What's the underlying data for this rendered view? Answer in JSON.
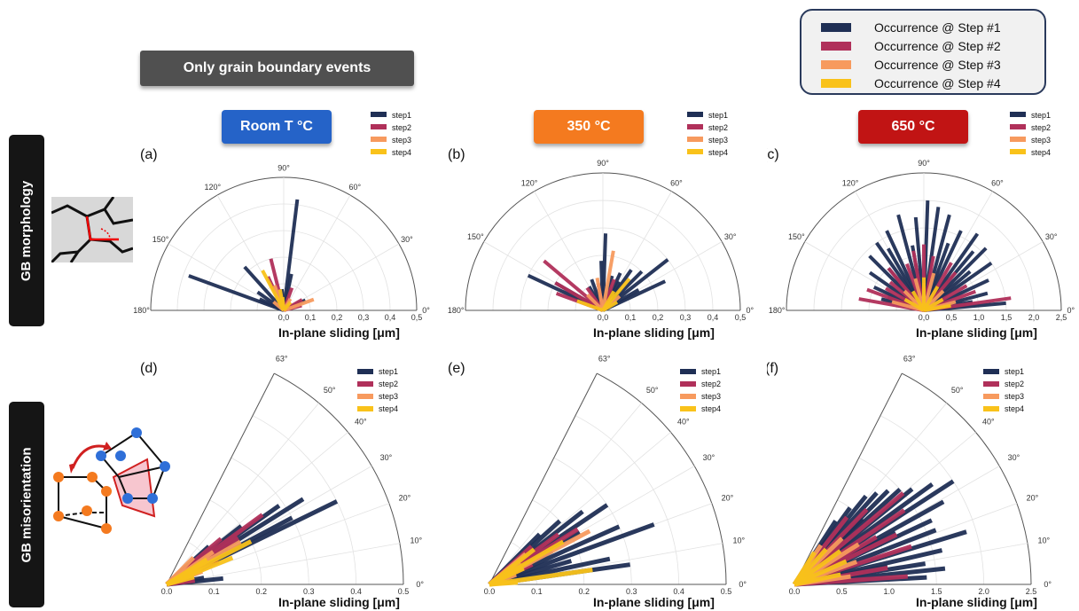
{
  "banner": "Only grain boundary events",
  "legend": [
    {
      "label": "Occurrence @ Step #1",
      "color": "#1f2f55"
    },
    {
      "label": "Occurrence @ Step #2",
      "color": "#b0305a"
    },
    {
      "label": "Occurrence @ Step #3",
      "color": "#f79a5e"
    },
    {
      "label": "Occurrence @ Step #4",
      "color": "#f9c21a"
    }
  ],
  "rows": [
    "GB morphology",
    "GB misorientation"
  ],
  "temperatures": [
    {
      "label": "Room T °C",
      "color": "#2563c8"
    },
    {
      "label": "350 °C",
      "color": "#f47a1f"
    },
    {
      "label": "650 °C",
      "color": "#c11414"
    }
  ],
  "step_legend": [
    "step1",
    "step2",
    "step3",
    "step4"
  ],
  "step_colors": [
    "#1f2f55",
    "#b0305a",
    "#f79a5e",
    "#f9c21a"
  ],
  "chart_data": [
    {
      "id": "a",
      "panel_label": "(a)",
      "type": "polar-bar",
      "theta_range": [
        0,
        180
      ],
      "theta_ticks": [
        0,
        30,
        60,
        90,
        120,
        150,
        180
      ],
      "r_max": 0.5,
      "r_ticks": [
        0.0,
        0.1,
        0.2,
        0.3,
        0.4,
        0.5
      ],
      "r_tick_labels": [
        "0,0",
        "0,1",
        "0,2",
        "0,3",
        "0,4",
        "0,5"
      ],
      "theta_tick_labels": [
        "0°",
        "30°",
        "60°",
        "90°",
        "120°",
        "150°",
        "180°"
      ],
      "xlabel": "In-plane sliding [μm]",
      "series": [
        {
          "name": "step1",
          "bars": [
            [
              83,
              0.42
            ],
            [
              78,
              0.14
            ],
            [
              160,
              0.38
            ],
            [
              132,
              0.22
            ],
            [
              145,
              0.12
            ],
            [
              155,
              0.1
            ],
            [
              25,
              0.09
            ],
            [
              95,
              0.08
            ]
          ]
        },
        {
          "name": "step2",
          "bars": [
            [
              104,
              0.2
            ],
            [
              30,
              0.08
            ],
            [
              70,
              0.09
            ],
            [
              115,
              0.14
            ],
            [
              15,
              0.07
            ]
          ]
        },
        {
          "name": "step3",
          "bars": [
            [
              20,
              0.12
            ],
            [
              110,
              0.1
            ],
            [
              60,
              0.05
            ],
            [
              140,
              0.05
            ]
          ]
        },
        {
          "name": "step4",
          "bars": [
            [
              118,
              0.17
            ],
            [
              100,
              0.08
            ],
            [
              50,
              0.04
            ],
            [
              95,
              0.05
            ]
          ]
        }
      ]
    },
    {
      "id": "b",
      "panel_label": "(b)",
      "type": "polar-bar",
      "theta_range": [
        0,
        180
      ],
      "theta_ticks": [
        0,
        30,
        60,
        90,
        120,
        150,
        180
      ],
      "r_max": 0.5,
      "r_ticks": [
        0.0,
        0.1,
        0.2,
        0.3,
        0.4,
        0.5
      ],
      "r_tick_labels": [
        "0,0",
        "0,1",
        "0,2",
        "0,3",
        "0,4",
        "0,5"
      ],
      "theta_tick_labels": [
        "0°",
        "30°",
        "60°",
        "90°",
        "120°",
        "150°",
        "180°"
      ],
      "xlabel": "In-plane sliding [μm]",
      "series": [
        {
          "name": "step1",
          "bars": [
            [
              38,
              0.3
            ],
            [
              45,
              0.2
            ],
            [
              55,
              0.18
            ],
            [
              65,
              0.15
            ],
            [
              75,
              0.13
            ],
            [
              88,
              0.28
            ],
            [
              92,
              0.18
            ],
            [
              155,
              0.3
            ],
            [
              150,
              0.2
            ],
            [
              110,
              0.12
            ],
            [
              120,
              0.1
            ],
            [
              60,
              0.12
            ],
            [
              30,
              0.15
            ],
            [
              25,
              0.25
            ]
          ]
        },
        {
          "name": "step2",
          "bars": [
            [
              140,
              0.28
            ],
            [
              150,
              0.2
            ],
            [
              125,
              0.1
            ],
            [
              160,
              0.18
            ],
            [
              70,
              0.12
            ],
            [
              100,
              0.1
            ]
          ]
        },
        {
          "name": "step3",
          "bars": [
            [
              80,
              0.22
            ],
            [
              100,
              0.12
            ],
            [
              40,
              0.08
            ],
            [
              135,
              0.08
            ]
          ]
        },
        {
          "name": "step4",
          "bars": [
            [
              50,
              0.15
            ],
            [
              160,
              0.1
            ],
            [
              60,
              0.08
            ],
            [
              30,
              0.06
            ]
          ]
        }
      ]
    },
    {
      "id": "c",
      "panel_label": "(c)",
      "type": "polar-bar",
      "theta_range": [
        0,
        180
      ],
      "theta_ticks": [
        0,
        30,
        60,
        90,
        120,
        150,
        180
      ],
      "r_max": 2.5,
      "r_ticks": [
        0.0,
        0.5,
        1.0,
        1.5,
        2.0,
        2.5
      ],
      "r_tick_labels": [
        "0,0",
        "0,5",
        "1,0",
        "1,5",
        "2,0",
        "2,5"
      ],
      "theta_tick_labels": [
        "0°",
        "30°",
        "60°",
        "90°",
        "120°",
        "150°",
        "180°"
      ],
      "xlabel": "In-plane sliding [μm]",
      "series": [
        {
          "name": "step1",
          "bars": [
            [
              5,
              1.5
            ],
            [
              15,
              1.2
            ],
            [
              25,
              1.3
            ],
            [
              35,
              1.5
            ],
            [
              45,
              1.6
            ],
            [
              55,
              1.7
            ],
            [
              65,
              1.6
            ],
            [
              75,
              1.8
            ],
            [
              82,
              1.9
            ],
            [
              88,
              2.0
            ],
            [
              95,
              1.7
            ],
            [
              105,
              1.8
            ],
            [
              115,
              1.6
            ],
            [
              125,
              1.5
            ],
            [
              135,
              1.4
            ],
            [
              145,
              1.2
            ],
            [
              155,
              1.0
            ],
            [
              165,
              0.8
            ],
            [
              10,
              0.9
            ],
            [
              40,
              1.1
            ],
            [
              70,
              1.3
            ],
            [
              100,
              1.2
            ],
            [
              130,
              1.0
            ],
            [
              160,
              0.7
            ],
            [
              50,
              1.4
            ],
            [
              120,
              1.3
            ]
          ]
        },
        {
          "name": "step2",
          "bars": [
            [
              8,
              1.6
            ],
            [
              20,
              1.0
            ],
            [
              30,
              0.9
            ],
            [
              50,
              0.9
            ],
            [
              60,
              1.0
            ],
            [
              80,
              1.0
            ],
            [
              100,
              1.1
            ],
            [
              110,
              0.9
            ],
            [
              130,
              1.0
            ],
            [
              150,
              0.8
            ],
            [
              170,
              1.2
            ],
            [
              160,
              1.1
            ],
            [
              140,
              0.8
            ],
            [
              90,
              1.2
            ]
          ]
        },
        {
          "name": "step3",
          "bars": [
            [
              15,
              0.6
            ],
            [
              45,
              0.5
            ],
            [
              75,
              0.7
            ],
            [
              105,
              0.6
            ],
            [
              135,
              0.5
            ],
            [
              165,
              0.6
            ],
            [
              90,
              0.5
            ]
          ]
        },
        {
          "name": "step4",
          "bars": [
            [
              30,
              0.4
            ],
            [
              60,
              0.5
            ],
            [
              90,
              0.6
            ],
            [
              120,
              0.4
            ],
            [
              150,
              0.4
            ],
            [
              10,
              0.5
            ]
          ]
        }
      ]
    },
    {
      "id": "d",
      "panel_label": "(d)",
      "type": "polar-bar",
      "theta_range": [
        0,
        63
      ],
      "theta_ticks": [
        0,
        10,
        20,
        30,
        40,
        50,
        63
      ],
      "r_max": 0.5,
      "r_ticks": [
        0.0,
        0.1,
        0.2,
        0.3,
        0.4,
        0.5
      ],
      "r_tick_labels": [
        "0.0",
        "0.1",
        "0.2",
        "0.3",
        "0.4",
        "0.5"
      ],
      "theta_tick_labels": [
        "0°",
        "10°",
        "20°",
        "30°",
        "40°",
        "50°",
        "63°"
      ],
      "xlabel": "In-plane sliding [μm]",
      "series": [
        {
          "name": "step1",
          "bars": [
            [
              26,
              0.4
            ],
            [
              28,
              0.3
            ],
            [
              32,
              0.34
            ],
            [
              35,
              0.29
            ],
            [
              38,
              0.2
            ],
            [
              42,
              0.12
            ],
            [
              6,
              0.12
            ],
            [
              10,
              0.08
            ],
            [
              30,
              0.15
            ]
          ]
        },
        {
          "name": "step2",
          "bars": [
            [
              36,
              0.25
            ],
            [
              33,
              0.18
            ],
            [
              40,
              0.15
            ],
            [
              24,
              0.12
            ],
            [
              8,
              0.06
            ]
          ]
        },
        {
          "name": "step3",
          "bars": [
            [
              30,
              0.18
            ],
            [
              35,
              0.12
            ],
            [
              20,
              0.08
            ],
            [
              45,
              0.08
            ]
          ]
        },
        {
          "name": "step4",
          "bars": [
            [
              27,
              0.2
            ],
            [
              22,
              0.15
            ],
            [
              32,
              0.1
            ],
            [
              15,
              0.06
            ]
          ]
        }
      ]
    },
    {
      "id": "e",
      "panel_label": "(e)",
      "type": "polar-bar",
      "theta_range": [
        0,
        63
      ],
      "theta_ticks": [
        0,
        10,
        20,
        30,
        40,
        50,
        63
      ],
      "r_max": 0.5,
      "r_ticks": [
        0.0,
        0.1,
        0.2,
        0.3,
        0.4,
        0.5
      ],
      "r_tick_labels": [
        "0.0",
        "0.1",
        "0.2",
        "0.3",
        "0.4",
        "0.5"
      ],
      "theta_tick_labels": [
        "0°",
        "10°",
        "20°",
        "30°",
        "40°",
        "50°",
        "63°"
      ],
      "xlabel": "In-plane sliding [μm]",
      "series": [
        {
          "name": "step1",
          "bars": [
            [
              8,
              0.3
            ],
            [
              12,
              0.26
            ],
            [
              20,
              0.37
            ],
            [
              24,
              0.3
            ],
            [
              30,
              0.22
            ],
            [
              34,
              0.3
            ],
            [
              38,
              0.25
            ],
            [
              42,
              0.2
            ],
            [
              45,
              0.15
            ],
            [
              28,
              0.15
            ],
            [
              16,
              0.18
            ]
          ]
        },
        {
          "name": "step2",
          "bars": [
            [
              32,
              0.22
            ],
            [
              36,
              0.18
            ],
            [
              42,
              0.12
            ],
            [
              25,
              0.1
            ]
          ]
        },
        {
          "name": "step3",
          "bars": [
            [
              28,
              0.24
            ],
            [
              40,
              0.1
            ],
            [
              35,
              0.08
            ],
            [
              20,
              0.06
            ]
          ]
        },
        {
          "name": "step4",
          "bars": [
            [
              8,
              0.22
            ],
            [
              30,
              0.18
            ],
            [
              38,
              0.12
            ],
            [
              4,
              0.06
            ],
            [
              25,
              0.08
            ]
          ]
        }
      ]
    },
    {
      "id": "f",
      "panel_label": "(f)",
      "type": "polar-bar",
      "theta_range": [
        0,
        63
      ],
      "theta_ticks": [
        0,
        10,
        20,
        30,
        40,
        50,
        63
      ],
      "r_max": 2.5,
      "r_ticks": [
        0.0,
        0.5,
        1.0,
        1.5,
        2.0,
        2.5
      ],
      "r_tick_labels": [
        "0.0",
        "0.5",
        "1.0",
        "1.5",
        "2.0",
        "2.5"
      ],
      "theta_tick_labels": [
        "0°",
        "10°",
        "20°",
        "30°",
        "40°",
        "50°",
        "63°"
      ],
      "xlabel": "In-plane sliding [μm]",
      "series": [
        {
          "name": "step1",
          "bars": [
            [
              3,
              1.4
            ],
            [
              6,
              1.6
            ],
            [
              9,
              1.4
            ],
            [
              13,
              1.6
            ],
            [
              17,
              1.9
            ],
            [
              21,
              1.6
            ],
            [
              25,
              1.6
            ],
            [
              29,
              1.8
            ],
            [
              33,
              2.0
            ],
            [
              36,
              1.8
            ],
            [
              39,
              1.6
            ],
            [
              42,
              1.5
            ],
            [
              45,
              1.4
            ],
            [
              48,
              1.3
            ],
            [
              51,
              1.2
            ],
            [
              54,
              1.0
            ],
            [
              57,
              0.8
            ],
            [
              11,
              1.0
            ],
            [
              27,
              1.2
            ],
            [
              44,
              1.0
            ]
          ]
        },
        {
          "name": "step2",
          "bars": [
            [
              4,
              1.2
            ],
            [
              10,
              1.0
            ],
            [
              18,
              1.3
            ],
            [
              26,
              1.2
            ],
            [
              34,
              1.4
            ],
            [
              40,
              1.5
            ],
            [
              46,
              1.1
            ],
            [
              52,
              0.9
            ],
            [
              30,
              1.0
            ]
          ]
        },
        {
          "name": "step3",
          "bars": [
            [
              8,
              0.6
            ],
            [
              20,
              0.7
            ],
            [
              32,
              0.8
            ],
            [
              44,
              0.7
            ],
            [
              56,
              0.5
            ]
          ]
        },
        {
          "name": "step4",
          "bars": [
            [
              12,
              0.5
            ],
            [
              24,
              0.6
            ],
            [
              36,
              0.6
            ],
            [
              48,
              0.5
            ],
            [
              58,
              0.4
            ]
          ]
        }
      ]
    }
  ]
}
